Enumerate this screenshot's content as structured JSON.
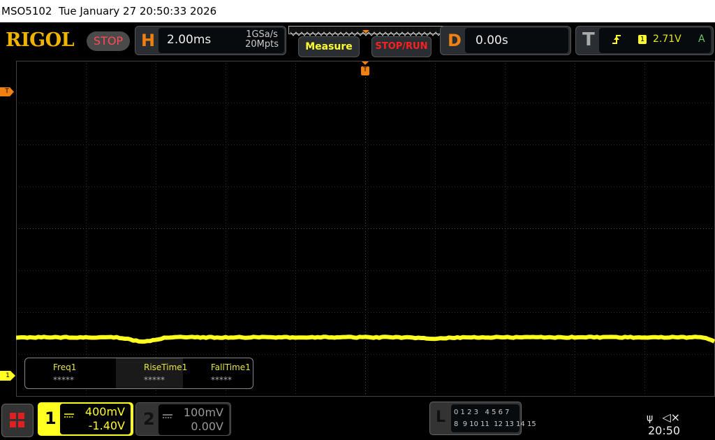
{
  "titlebar": {
    "model": "MSO5102",
    "datetime": "Tue January 27 20:50:33 2026"
  },
  "brand": {
    "logo": "RIGOL",
    "run_state": "STOP"
  },
  "horizontal": {
    "letter": "H",
    "timebase": "2.00ms",
    "sample_rate": "1GSa/s",
    "memory_depth": "20Mpts"
  },
  "buttons": {
    "measure": "Measure",
    "stop_run": "STOP/RUN"
  },
  "delay": {
    "letter": "D",
    "value": "0.00s"
  },
  "trigger": {
    "letter": "T",
    "slope_icon": "rising-edge-icon",
    "source": "1",
    "level": "2.71V",
    "mode": "A"
  },
  "markers": {
    "trigger_position": "T",
    "trigger_level": "T",
    "ch1_offset": "1"
  },
  "measurements": [
    {
      "label": "Freq1",
      "value": "*****"
    },
    {
      "label": "RiseTime1",
      "value": "*****"
    },
    {
      "label": "FallTime1",
      "value": "*****"
    }
  ],
  "channels": [
    {
      "number": "1",
      "coupling_icon": "dc-coupling-icon",
      "scale": "400mV",
      "offset": "-1.40V",
      "active": true,
      "color": "#ffff20"
    },
    {
      "number": "2",
      "coupling_icon": "dc-coupling-icon",
      "scale": "100mV",
      "offset": "0.00V",
      "active": false
    }
  ],
  "logic": {
    "letter": "L",
    "row1": "0 1 2 3   4 5 6 7",
    "row2": "8  9 10 11  12 13 14 15"
  },
  "status": {
    "clock": "20:50",
    "usb_icon": "usb-icon",
    "sound_icon": "speaker-muted-icon"
  },
  "colors": {
    "ch1": "#ffff20",
    "accent": "#f08010",
    "stop": "#ff4b55",
    "grid": "#3a3a3a"
  }
}
